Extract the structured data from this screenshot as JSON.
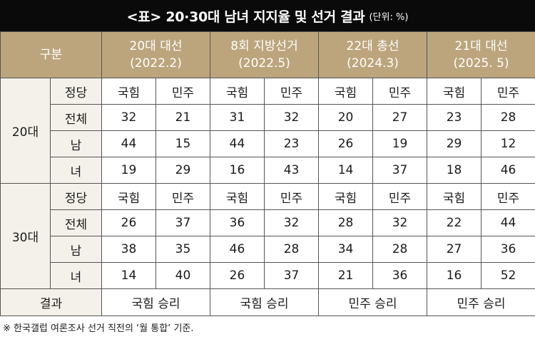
{
  "title": "<표> 20·30대 남녀 지지율 및 선거 결과",
  "unit": "(단위: %)",
  "header": {
    "category": "구분",
    "elections": [
      {
        "line1": "20대 대선",
        "line2": "(2022.2)"
      },
      {
        "line1": "8회 지방선거",
        "line2": "(2022.5)"
      },
      {
        "line1": "22대 총선",
        "line2": "(2024.3)"
      },
      {
        "line1": "21대 대선",
        "line2": "(2025. 5)"
      }
    ]
  },
  "parties": [
    "국힘",
    "민주"
  ],
  "groups": [
    {
      "age": "20대",
      "party_label": "정당",
      "rows": [
        {
          "label": "전체",
          "values": [
            "32",
            "21",
            "31",
            "32",
            "20",
            "27",
            "23",
            "28"
          ]
        },
        {
          "label": "남",
          "values": [
            "44",
            "15",
            "44",
            "23",
            "26",
            "19",
            "29",
            "12"
          ]
        },
        {
          "label": "녀",
          "values": [
            "19",
            "29",
            "16",
            "43",
            "14",
            "37",
            "18",
            "46"
          ]
        }
      ]
    },
    {
      "age": "30대",
      "party_label": "정당",
      "rows": [
        {
          "label": "전체",
          "values": [
            "26",
            "37",
            "36",
            "32",
            "28",
            "32",
            "22",
            "44"
          ]
        },
        {
          "label": "남",
          "values": [
            "38",
            "35",
            "46",
            "28",
            "34",
            "28",
            "27",
            "36"
          ]
        },
        {
          "label": "녀",
          "values": [
            "14",
            "40",
            "26",
            "37",
            "21",
            "36",
            "16",
            "52"
          ]
        }
      ]
    }
  ],
  "result": {
    "label": "결과",
    "values": [
      "국힘 승리",
      "국힘 승리",
      "민주 승리",
      "민주 승리"
    ]
  },
  "footnote": "※ 한국갤럽 여론조사 선거 직전의 ‘월 통합’ 기준.",
  "colors": {
    "title_bg": "#0a0a0a",
    "header_bg": "#bca57d",
    "label_bg": "#f4f1ea",
    "border": "#555555"
  }
}
